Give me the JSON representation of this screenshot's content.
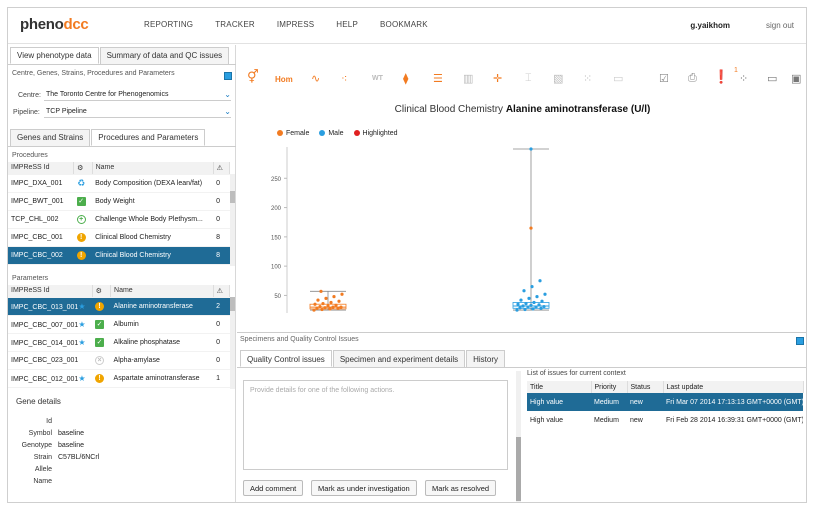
{
  "header": {
    "logo_left": "pheno",
    "logo_right": "dcc",
    "nav": [
      "REPORTING",
      "TRACKER",
      "IMPRESS",
      "HELP",
      "BOOKMARK"
    ],
    "user": "g.yaikhom",
    "signout": "sign out"
  },
  "left": {
    "tabs": [
      "View phenotype data",
      "Summary of data and QC issues"
    ],
    "filter_title": "Centre, Genes, Strains, Procedures and Parameters",
    "centre_label": "Centre:",
    "centre_value": "The Toronto Centre for Phenogenomics",
    "pipeline_label": "Pipeline:",
    "pipeline_value": "TCP Pipeline",
    "subtabs": [
      "Genes and Strains",
      "Procedures and Parameters"
    ],
    "procedures_title": "Procedures",
    "procedures_headers": [
      "IMPReSS Id",
      "",
      "Name",
      ""
    ],
    "procedures": [
      {
        "id": "IMPC_DXA_001",
        "icon": "recycle",
        "name": "Body Composition (DEXA lean/fat)",
        "count": "0"
      },
      {
        "id": "IMPC_BWT_001",
        "icon": "ok",
        "name": "Body Weight",
        "count": "0"
      },
      {
        "id": "TCP_CHL_002",
        "icon": "plus",
        "name": "Challenge Whole Body Plethysm...",
        "count": "0"
      },
      {
        "id": "IMPC_CBC_001",
        "icon": "warn",
        "name": "Clinical Blood Chemistry",
        "count": "8"
      },
      {
        "id": "IMPC_CBC_002",
        "icon": "warn",
        "name": "Clinical Blood Chemistry",
        "count": "8"
      }
    ],
    "parameters_title": "Parameters",
    "parameters_headers": [
      "IMPReSS Id",
      "",
      "Name",
      ""
    ],
    "parameters": [
      {
        "id": "IMPC_CBC_013_001",
        "star": true,
        "icon": "warn",
        "name": "Alanine aminotransferase",
        "count": "2"
      },
      {
        "id": "IMPC_CBC_007_001",
        "star": true,
        "icon": "ok",
        "name": "Albumin",
        "count": "0"
      },
      {
        "id": "IMPC_CBC_014_001",
        "star": true,
        "icon": "ok",
        "name": "Alkaline phosphatase",
        "count": "0"
      },
      {
        "id": "IMPC_CBC_023_001",
        "star": false,
        "icon": "x",
        "name": "Alpha-amylase",
        "count": "0"
      },
      {
        "id": "IMPC_CBC_012_001",
        "star": true,
        "icon": "warn",
        "name": "Aspartate aminotransferase",
        "count": "1"
      }
    ],
    "gene_details_title": "Gene details",
    "gene_details": [
      {
        "k": "Id",
        "v": ""
      },
      {
        "k": "Symbol",
        "v": "baseline"
      },
      {
        "k": "Genotype",
        "v": "baseline"
      },
      {
        "k": "Strain",
        "v": "C57BL/6NCrl"
      },
      {
        "k": "Allele",
        "v": ""
      },
      {
        "k": "Name",
        "v": ""
      }
    ]
  },
  "toolbar": {
    "hom": "Hom",
    "wt": "WT",
    "badge": "1"
  },
  "chart_data": {
    "type": "scatter",
    "title_prefix": "Clinical Blood Chemistry",
    "title_param": "Alanine aminotransferase (U/l)",
    "legend": [
      "Female",
      "Male",
      "Highlighted"
    ],
    "colors": {
      "female": "#f27b21",
      "male": "#2a9ee0",
      "highlighted": "#e02020"
    },
    "yticks": [
      50,
      100,
      150,
      200,
      250
    ],
    "ylim": [
      20,
      300
    ],
    "series": [
      {
        "name": "Female",
        "summary": {
          "min": 25,
          "max": 57,
          "median": 30,
          "q1": 27,
          "q3": 35
        },
        "points": [
          25,
          26,
          27,
          28,
          28,
          29,
          30,
          30,
          31,
          32,
          33,
          35,
          36,
          38,
          40,
          42,
          45,
          48,
          52,
          57
        ]
      },
      {
        "name": "Male",
        "summary": {
          "min": 25,
          "max": 300,
          "median": 32,
          "q1": 28,
          "q3": 38,
          "highlight": 165
        },
        "points": [
          25,
          26,
          27,
          28,
          29,
          30,
          30,
          31,
          32,
          33,
          34,
          35,
          36,
          38,
          40,
          42,
          45,
          48,
          52,
          58,
          65,
          75,
          300,
          165
        ]
      }
    ]
  },
  "sqc": {
    "title": "Specimens and Quality Control Issues",
    "tabs": [
      "Quality Control issues",
      "Specimen and experiment details",
      "History"
    ],
    "placeholder": "Provide details for one of the following actions.",
    "buttons": [
      "Add comment",
      "Mark as under investigation",
      "Mark as resolved"
    ],
    "list_title": "List of issues for current context",
    "headers": [
      "Title",
      "Priority",
      "Status",
      "Last update"
    ],
    "issues": [
      {
        "title": "High value",
        "priority": "Medium",
        "status": "new",
        "update": "Fri Mar 07 2014 17:13:13 GMT+0000 (GMT)"
      },
      {
        "title": "High value",
        "priority": "Medium",
        "status": "new",
        "update": "Fri Feb 28 2014 16:39:31 GMT+0000 (GMT)"
      }
    ]
  }
}
